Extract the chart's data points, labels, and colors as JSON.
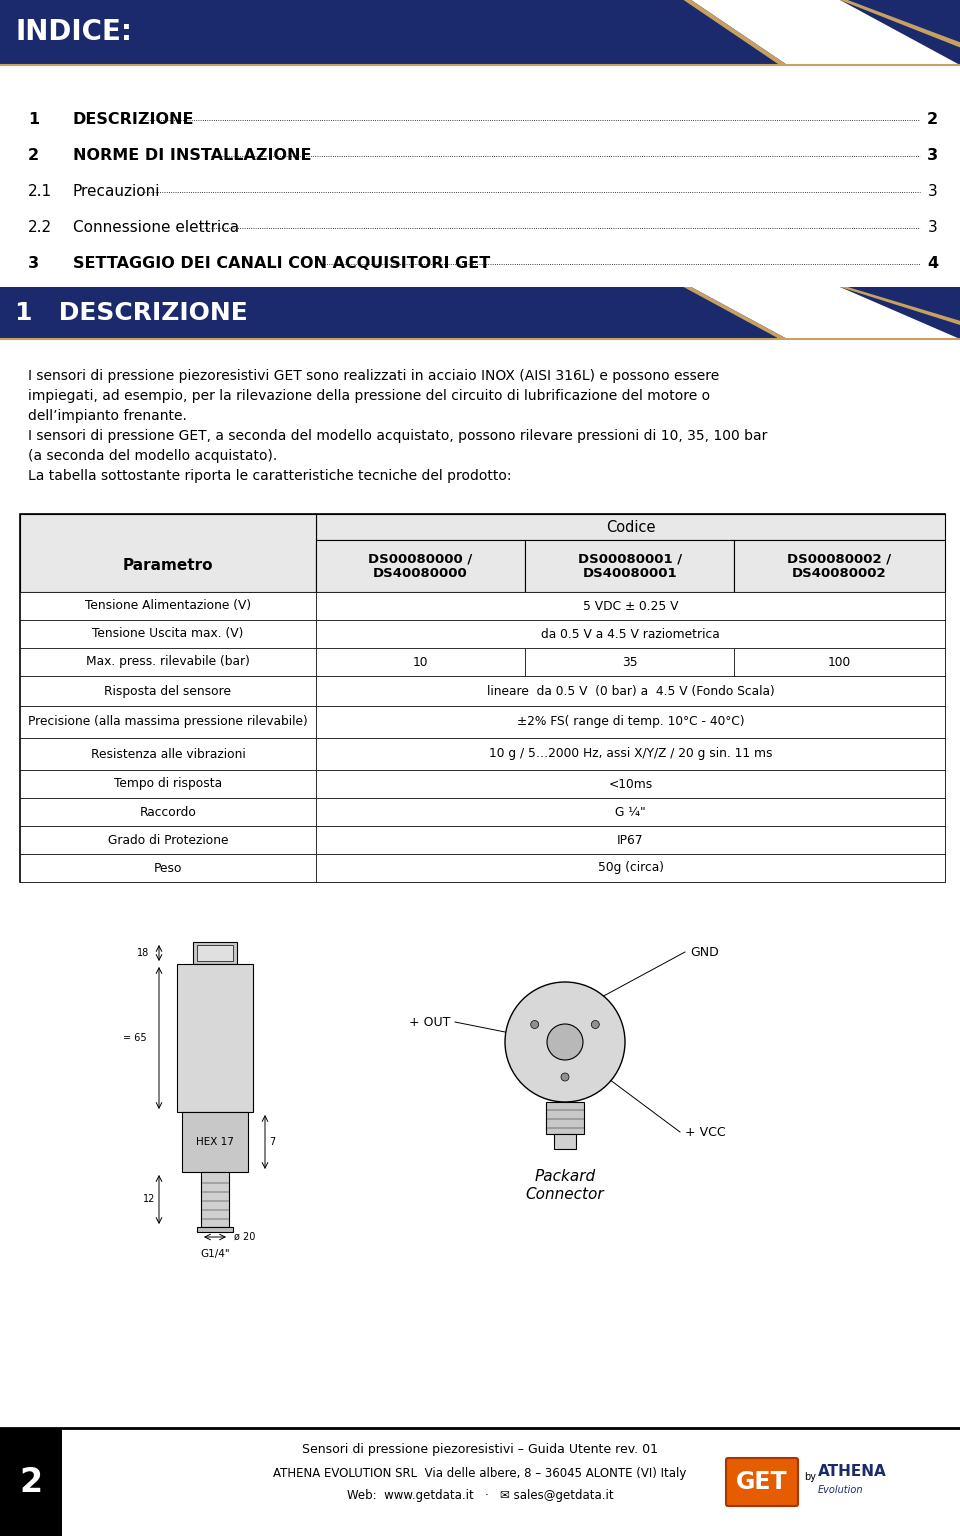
{
  "title_header": "INDICE:",
  "bg_header_color": "#1a2a6c",
  "header_text_color": "#ffffff",
  "toc_items": [
    {
      "num": "1",
      "text": "DESCRIZIONE",
      "page": "2",
      "bold": true
    },
    {
      "num": "2",
      "text": "NORME DI INSTALLAZIONE",
      "page": "3",
      "bold": true
    },
    {
      "num": "2.1",
      "text": "Precauzioni",
      "page": "3",
      "bold": false
    },
    {
      "num": "2.2",
      "text": "Connessione elettrica",
      "page": "3",
      "bold": false
    },
    {
      "num": "3",
      "text": "SETTAGGIO DEI CANALI CON ACQUISITORI GET",
      "page": "4",
      "bold": true
    }
  ],
  "section1_header": "1   DESCRIZIONE",
  "section1_text_lines": [
    "I sensori di pressione piezoresistivi GET sono realizzati in acciaio INOX (AISI 316L) e possono essere",
    "impiegati, ad esempio, per la rilevazione della pressione del circuito di lubrificazione del motore o",
    "dell’impianto frenante.",
    "I sensori di pressione GET, a seconda del modello acquistato, possono rilevare pressioni di 10, 35, 100 bar",
    "(a seconda del modello acquistato).",
    "La tabella sottostante riporta le caratteristiche tecniche del prodotto:"
  ],
  "table_col0_header": "Parametro",
  "table_codice_header": "Codice",
  "table_col1_header": "DS00080000 /\nDS40080000",
  "table_col2_header": "DS00080001 /\nDS40080001",
  "table_col3_header": "DS00080002 /\nDS40080002",
  "table_rows": [
    {
      "param": "Tensione Alimentazione (V)",
      "c1": "5 VDC ± 0.25 V",
      "c2": "",
      "c3": "",
      "span": true
    },
    {
      "param": "Tensione Uscita max. (V)",
      "c1": "da 0.5 V a 4.5 V raziometrica",
      "c2": "",
      "c3": "",
      "span": true
    },
    {
      "param": "Max. press. rilevabile (bar)",
      "c1": "10",
      "c2": "35",
      "c3": "100",
      "span": false
    },
    {
      "param": "Risposta del sensore",
      "c1": "lineare  da 0.5 V  (0 bar) a  4.5 V (Fondo Scala)",
      "c2": "",
      "c3": "",
      "span": true
    },
    {
      "param": "Precisione (alla massima pressione rilevabile)",
      "c1": "±2% FS( range di temp. 10°C - 40°C)",
      "c2": "",
      "c3": "",
      "span": true
    },
    {
      "param": "Resistenza alle vibrazioni",
      "c1": "10 g / 5…2000 Hz, assi X/Y/Z / 20 g sin. 11 ms",
      "c2": "",
      "c3": "",
      "span": true
    },
    {
      "param": "Tempo di risposta",
      "c1": "<10ms",
      "c2": "",
      "c3": "",
      "span": true
    },
    {
      "param": "Raccordo",
      "c1": "G ¼\"",
      "c2": "",
      "c3": "",
      "span": true
    },
    {
      "param": "Grado di Protezione",
      "c1": "IP67",
      "c2": "",
      "c3": "",
      "span": true
    },
    {
      "param": "Peso",
      "c1": "50g (circa)",
      "c2": "",
      "c3": "",
      "span": true
    }
  ],
  "footer_page_num": "2",
  "footer_line1": "Sensori di pressione piezoresistivi – Guida Utente rev. 01",
  "footer_line2": "ATHENA EVOLUTION SRL  Via delle albere, 8 – 36045 ALONTE (VI) Italy",
  "footer_line3": "Web:  www.getdata.it   ·   ✉ sales@getdata.it",
  "get_logo_color": "#e65c00",
  "page_bg": "#ffffff",
  "dark_navy": "#1a2a6c",
  "gold_color": "#c8a060",
  "light_gray": "#e8e8e8"
}
